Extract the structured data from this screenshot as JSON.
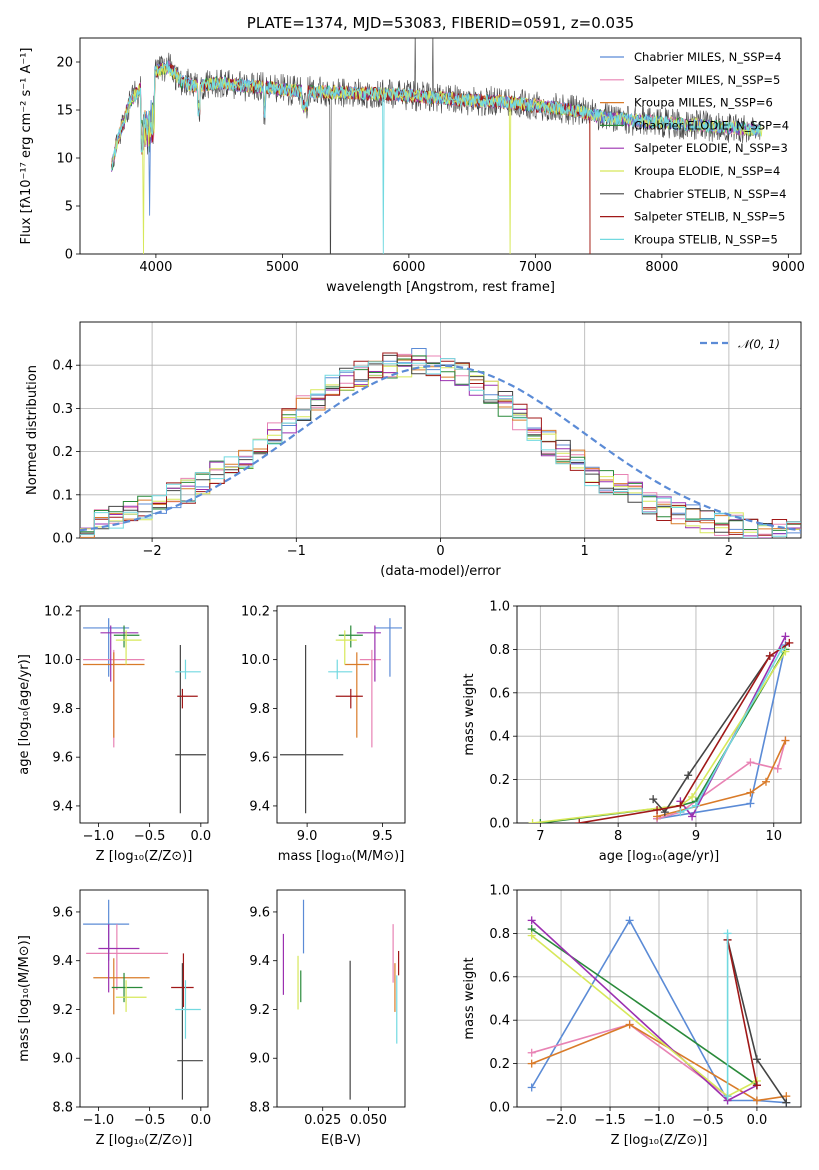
{
  "chart_data": [
    {
      "type": "line",
      "title": "PLATE=1374, MJD=53083, FIBERID=0591, z=0.035",
      "xlabel": "wavelength [Angstrom, rest frame]",
      "ylabel": "Flux [fλ10⁻¹⁷ erg cm⁻² s⁻¹ A⁻¹]",
      "xlim": [
        3400,
        9100
      ],
      "ylim": [
        0,
        22.5
      ],
      "xticks": [
        "4000",
        "5000",
        "6000",
        "7000",
        "8000",
        "9000"
      ],
      "yticks": [
        "0",
        "5",
        "10",
        "15",
        "20"
      ],
      "legend_position": "top-right",
      "series": [
        {
          "name": "Chabrier MILES, N_SSP=4",
          "color": "#5b8bd6"
        },
        {
          "name": "Salpeter MILES, N_SSP=5",
          "color": "#e883b4"
        },
        {
          "name": "Kroupa MILES, N_SSP=6",
          "color": "#d97b29"
        },
        {
          "name": "Chabrier ELODIE, N_SSP=4",
          "color": "#2a8a3a"
        },
        {
          "name": "Salpeter ELODIE, N_SSP=3",
          "color": "#9b30b0"
        },
        {
          "name": "Kroupa ELODIE, N_SSP=4",
          "color": "#d7e85a"
        },
        {
          "name": "Chabrier STELIB, N_SSP=4",
          "color": "#444444"
        },
        {
          "name": "Salpeter STELIB, N_SSP=5",
          "color": "#a01818"
        },
        {
          "name": "Kroupa STELIB, N_SSP=5",
          "color": "#72d9e0"
        }
      ],
      "spectrum_envelope": {
        "x": [
          3650,
          3700,
          3800,
          3900,
          4000,
          4100,
          4200,
          4300,
          4400,
          4500,
          4700,
          4900,
          5100,
          5300,
          5500,
          5700,
          5900,
          6100,
          6300,
          6500,
          6700,
          6900,
          7100,
          7300,
          7500,
          7700,
          7900,
          8100,
          8300,
          8500,
          8700,
          8800
        ],
        "y": [
          9,
          12,
          16,
          17.5,
          19,
          19.5,
          18,
          17.5,
          17.6,
          17.8,
          17.5,
          17.3,
          17,
          16.9,
          16.8,
          16.7,
          16.6,
          16.4,
          16.2,
          16,
          15.9,
          15.6,
          15.3,
          15,
          14.4,
          14,
          13.8,
          13.6,
          13.4,
          13.2,
          13,
          12.9
        ]
      },
      "annotations": [
        "deep absorption/cutoff spikes near 3950, 5380, 5800, 6800 and 7430 Å"
      ]
    },
    {
      "type": "bar",
      "xlabel": "(data-model)/error",
      "ylabel": "Normed distribution",
      "xlim": [
        -2.5,
        2.5
      ],
      "ylim": [
        0,
        0.5
      ],
      "xticks": [
        "−2",
        "−1",
        "0",
        "1",
        "2"
      ],
      "yticks": [
        "0.0",
        "0.1",
        "0.2",
        "0.3",
        "0.4"
      ],
      "grid": true,
      "legend_position": "top-right",
      "reference_curve": {
        "name": "𝒩(0, 1)",
        "color": "#5b8bd6",
        "style": "dashed"
      },
      "bin_width": 0.1,
      "histogram_values": [
        0.02,
        0.04,
        0.05,
        0.06,
        0.07,
        0.08,
        0.1,
        0.11,
        0.13,
        0.15,
        0.17,
        0.19,
        0.22,
        0.24,
        0.27,
        0.3,
        0.32,
        0.35,
        0.37,
        0.38,
        0.39,
        0.4,
        0.4,
        0.41,
        0.4,
        0.39,
        0.38,
        0.36,
        0.34,
        0.31,
        0.28,
        0.25,
        0.22,
        0.2,
        0.18,
        0.15,
        0.13,
        0.12,
        0.1,
        0.08,
        0.07,
        0.06,
        0.05,
        0.04,
        0.03,
        0.03,
        0.02,
        0.02,
        0.02,
        0.02
      ],
      "series_colors": [
        "#5b8bd6",
        "#e883b4",
        "#d97b29",
        "#2a8a3a",
        "#9b30b0",
        "#d7e85a",
        "#444444",
        "#a01818",
        "#72d9e0"
      ]
    },
    {
      "type": "scatter",
      "xlabel": "Z [log₁₀(Z/Z⊙)]",
      "ylabel": "age  [log₁₀(age/yr)]",
      "xlim": [
        -1.18,
        0.07
      ],
      "ylim": [
        9.33,
        10.22
      ],
      "xticks": [
        "−1.0",
        "−0.5",
        "0.0"
      ],
      "yticks": [
        "9.4",
        "9.6",
        "9.8",
        "10.0",
        "10.2"
      ],
      "points": [
        {
          "x": -0.9,
          "y": 10.13,
          "xerr": [
            0.25,
            0.2
          ],
          "yerr": [
            0.2,
            0.04
          ],
          "color": "#5b8bd6"
        },
        {
          "x": -0.85,
          "y": 10.0,
          "xerr": [
            0.3,
            0.3
          ],
          "yerr": [
            0.36,
            0.04
          ],
          "color": "#e883b4"
        },
        {
          "x": -0.85,
          "y": 9.98,
          "xerr": [
            0.3,
            0.3
          ],
          "yerr": [
            0.3,
            0.05
          ],
          "color": "#d97b29"
        },
        {
          "x": -0.75,
          "y": 10.1,
          "xerr": [
            0.1,
            0.15
          ],
          "yerr": [
            0.05,
            0.04
          ],
          "color": "#2a8a3a"
        },
        {
          "x": -0.88,
          "y": 10.11,
          "xerr": [
            0.1,
            0.27
          ],
          "yerr": [
            0.2,
            0.03
          ],
          "color": "#9b30b0"
        },
        {
          "x": -0.73,
          "y": 10.08,
          "xerr": [
            0.1,
            0.15
          ],
          "yerr": [
            0.1,
            0.04
          ],
          "color": "#d7e85a"
        },
        {
          "x": -0.2,
          "y": 9.61,
          "xerr": [
            0.05,
            0.25
          ],
          "yerr": [
            0.24,
            0.45
          ],
          "color": "#444444"
        },
        {
          "x": -0.18,
          "y": 9.85,
          "xerr": [
            0.05,
            0.15
          ],
          "yerr": [
            0.05,
            0.03
          ],
          "color": "#a01818"
        },
        {
          "x": -0.15,
          "y": 9.95,
          "xerr": [
            0.1,
            0.15
          ],
          "yerr": [
            0.03,
            0.05
          ],
          "color": "#72d9e0"
        }
      ]
    },
    {
      "type": "scatter",
      "xlabel": "mass [log₁₀(M/M⊙)]",
      "ylabel": "",
      "xlim": [
        8.8,
        9.65
      ],
      "ylim": [
        9.33,
        10.22
      ],
      "xticks": [
        "9.0",
        "9.5"
      ],
      "yticks": [
        "9.4",
        "9.6",
        "9.8",
        "10.0",
        "10.2"
      ],
      "points": [
        {
          "x": 9.55,
          "y": 10.13,
          "xerr": [
            0.1,
            0.08
          ],
          "yerr": [
            0.2,
            0.04
          ],
          "color": "#5b8bd6"
        },
        {
          "x": 9.43,
          "y": 10.0,
          "xerr": [
            0.08,
            0.06
          ],
          "yerr": [
            0.36,
            0.04
          ],
          "color": "#e883b4"
        },
        {
          "x": 9.33,
          "y": 9.98,
          "xerr": [
            0.08,
            0.08
          ],
          "yerr": [
            0.3,
            0.05
          ],
          "color": "#d97b29"
        },
        {
          "x": 9.29,
          "y": 10.1,
          "xerr": [
            0.08,
            0.08
          ],
          "yerr": [
            0.05,
            0.04
          ],
          "color": "#2a8a3a"
        },
        {
          "x": 9.45,
          "y": 10.11,
          "xerr": [
            0.12,
            0.04
          ],
          "yerr": [
            0.2,
            0.03
          ],
          "color": "#9b30b0"
        },
        {
          "x": 9.25,
          "y": 10.08,
          "xerr": [
            0.06,
            0.08
          ],
          "yerr": [
            0.1,
            0.04
          ],
          "color": "#d7e85a"
        },
        {
          "x": 8.99,
          "y": 9.61,
          "xerr": [
            0.17,
            0.25
          ],
          "yerr": [
            0.24,
            0.45
          ],
          "color": "#444444"
        },
        {
          "x": 9.29,
          "y": 9.85,
          "xerr": [
            0.1,
            0.08
          ],
          "yerr": [
            0.05,
            0.03
          ],
          "color": "#a01818"
        },
        {
          "x": 9.2,
          "y": 9.95,
          "xerr": [
            0.06,
            0.1
          ],
          "yerr": [
            0.03,
            0.05
          ],
          "color": "#72d9e0"
        }
      ]
    },
    {
      "type": "line",
      "xlabel": "age  [log₁₀(age/yr)]",
      "ylabel": "mass weight",
      "xlim": [
        6.7,
        10.35
      ],
      "ylim": [
        0,
        1.0
      ],
      "xticks": [
        "7",
        "8",
        "9",
        "10"
      ],
      "yticks": [
        "0.0",
        "0.2",
        "0.4",
        "0.6",
        "0.8",
        "1.0"
      ],
      "grid": true,
      "series": [
        {
          "color": "#5b8bd6",
          "x": [
            8.5,
            9.7,
            10.15
          ],
          "y": [
            0.02,
            0.09,
            0.82
          ]
        },
        {
          "color": "#e883b4",
          "x": [
            8.5,
            8.8,
            9.7,
            10.05,
            10.15
          ],
          "y": [
            0.02,
            0.05,
            0.28,
            0.25,
            0.38
          ]
        },
        {
          "color": "#d97b29",
          "x": [
            8.5,
            9.7,
            9.9,
            10.15
          ],
          "y": [
            0.03,
            0.14,
            0.19,
            0.38
          ]
        },
        {
          "color": "#2a8a3a",
          "x": [
            7.0,
            8.8,
            9.0,
            10.15
          ],
          "y": [
            0.0,
            0.08,
            0.1,
            0.8
          ]
        },
        {
          "color": "#9b30b0",
          "x": [
            8.8,
            8.95,
            10.15
          ],
          "y": [
            0.1,
            0.03,
            0.86
          ]
        },
        {
          "color": "#d7e85a",
          "x": [
            6.9,
            8.8,
            8.95,
            10.15
          ],
          "y": [
            0.0,
            0.08,
            0.12,
            0.79
          ]
        },
        {
          "color": "#444444",
          "x": [
            8.45,
            8.6,
            8.9,
            9.95
          ],
          "y": [
            0.11,
            0.05,
            0.22,
            0.77
          ]
        },
        {
          "color": "#a01818",
          "x": [
            7.5,
            8.5,
            8.8,
            9.95,
            10.2
          ],
          "y": [
            0.0,
            0.06,
            0.08,
            0.77,
            0.83
          ]
        },
        {
          "color": "#72d9e0",
          "x": [
            8.8,
            9.0,
            10.1
          ],
          "y": [
            0.05,
            0.08,
            0.8
          ]
        }
      ]
    },
    {
      "type": "scatter",
      "xlabel": "Z [log₁₀(Z/Z⊙)]",
      "ylabel": "mass [log₁₀(M/M⊙)]",
      "xlim": [
        -1.18,
        0.07
      ],
      "ylim": [
        8.8,
        9.69
      ],
      "xticks": [
        "−1.0",
        "−0.5",
        "0.0"
      ],
      "yticks": [
        "8.8",
        "9.0",
        "9.2",
        "9.4",
        "9.6"
      ],
      "points": [
        {
          "x": -0.9,
          "y": 9.55,
          "xerr": [
            0.25,
            0.2
          ],
          "yerr": [
            0.15,
            0.1
          ],
          "color": "#5b8bd6"
        },
        {
          "x": -0.82,
          "y": 9.43,
          "xerr": [
            0.3,
            0.5
          ],
          "yerr": [
            0.15,
            0.12
          ],
          "color": "#e883b4"
        },
        {
          "x": -0.85,
          "y": 9.33,
          "xerr": [
            0.2,
            0.35
          ],
          "yerr": [
            0.15,
            0.08
          ],
          "color": "#d97b29"
        },
        {
          "x": -0.75,
          "y": 9.29,
          "xerr": [
            0.12,
            0.18
          ],
          "yerr": [
            0.06,
            0.06
          ],
          "color": "#2a8a3a"
        },
        {
          "x": -0.9,
          "y": 9.45,
          "xerr": [
            0.1,
            0.3
          ],
          "yerr": [
            0.18,
            0.1
          ],
          "color": "#9b30b0"
        },
        {
          "x": -0.73,
          "y": 9.25,
          "xerr": [
            0.1,
            0.2
          ],
          "yerr": [
            0.06,
            0.07
          ],
          "color": "#d7e85a"
        },
        {
          "x": -0.18,
          "y": 8.99,
          "xerr": [
            0.05,
            0.2
          ],
          "yerr": [
            0.16,
            0.4
          ],
          "color": "#444444"
        },
        {
          "x": -0.17,
          "y": 9.29,
          "xerr": [
            0.12,
            0.1
          ],
          "yerr": [
            0.08,
            0.14
          ],
          "color": "#a01818"
        },
        {
          "x": -0.15,
          "y": 9.2,
          "xerr": [
            0.1,
            0.15
          ],
          "yerr": [
            0.12,
            0.12
          ],
          "color": "#72d9e0"
        }
      ]
    },
    {
      "type": "scatter",
      "xlabel": "E(B-V)",
      "ylabel": "",
      "xlim": [
        0.0,
        0.07
      ],
      "ylim": [
        8.8,
        9.69
      ],
      "xticks": [
        "0.025",
        "0.050"
      ],
      "yticks": [
        "8.8",
        "9.0",
        "9.2",
        "9.4",
        "9.6"
      ],
      "points": [
        {
          "x": 0.0145,
          "y": 9.55,
          "xerr": [
            0,
            0
          ],
          "yerr": [
            0.12,
            0.1
          ],
          "color": "#5b8bd6"
        },
        {
          "x": 0.0635,
          "y": 9.43,
          "xerr": [
            0,
            0
          ],
          "yerr": [
            0.12,
            0.12
          ],
          "color": "#e883b4"
        },
        {
          "x": 0.0645,
          "y": 9.33,
          "xerr": [
            0,
            0
          ],
          "yerr": [
            0.14,
            0.06
          ],
          "color": "#d97b29"
        },
        {
          "x": 0.013,
          "y": 9.29,
          "xerr": [
            0,
            0
          ],
          "yerr": [
            0.06,
            0.07
          ],
          "color": "#2a8a3a"
        },
        {
          "x": 0.0035,
          "y": 9.39,
          "xerr": [
            0,
            0
          ],
          "yerr": [
            0.13,
            0.12
          ],
          "color": "#9b30b0"
        },
        {
          "x": 0.0115,
          "y": 9.3,
          "xerr": [
            0,
            0
          ],
          "yerr": [
            0.1,
            0.12
          ],
          "color": "#d7e85a"
        },
        {
          "x": 0.04,
          "y": 9.1,
          "xerr": [
            0,
            0
          ],
          "yerr": [
            0.27,
            0.3
          ],
          "color": "#444444"
        },
        {
          "x": 0.0665,
          "y": 9.38,
          "xerr": [
            0,
            0
          ],
          "yerr": [
            0.04,
            0.06
          ],
          "color": "#a01818"
        },
        {
          "x": 0.0655,
          "y": 9.2,
          "xerr": [
            0,
            0
          ],
          "yerr": [
            0.14,
            0.14
          ],
          "color": "#72d9e0"
        }
      ]
    },
    {
      "type": "line",
      "xlabel": "Z [log₁₀(Z/Z⊙)]",
      "ylabel": "mass weight",
      "xlim": [
        -2.45,
        0.45
      ],
      "ylim": [
        0,
        1.0
      ],
      "xticks": [
        "−2.0",
        "−1.5",
        "−1.0",
        "−0.5",
        "0.0"
      ],
      "yticks": [
        "0.0",
        "0.2",
        "0.4",
        "0.6",
        "0.8",
        "1.0"
      ],
      "grid": true,
      "series": [
        {
          "color": "#5b8bd6",
          "x": [
            -2.3,
            -1.3,
            -0.3,
            0.0,
            0.3
          ],
          "y": [
            0.09,
            0.86,
            0.03,
            0.03,
            0.02
          ]
        },
        {
          "color": "#e883b4",
          "x": [
            -2.3,
            -1.3,
            -0.3
          ],
          "y": [
            0.25,
            0.38,
            0.05
          ]
        },
        {
          "color": "#d97b29",
          "x": [
            -2.3,
            -1.3,
            0.0,
            0.3
          ],
          "y": [
            0.2,
            0.38,
            0.03,
            0.05
          ]
        },
        {
          "color": "#2a8a3a",
          "x": [
            -2.3,
            0.0
          ],
          "y": [
            0.82,
            0.1
          ]
        },
        {
          "color": "#9b30b0",
          "x": [
            -2.3,
            -0.3,
            0.0
          ],
          "y": [
            0.86,
            0.03,
            0.1
          ]
        },
        {
          "color": "#d7e85a",
          "x": [
            -2.3,
            -0.3,
            0.0
          ],
          "y": [
            0.79,
            0.05,
            0.12
          ]
        },
        {
          "color": "#444444",
          "x": [
            -0.3,
            0.0,
            0.3
          ],
          "y": [
            0.77,
            0.22,
            0.02
          ]
        },
        {
          "color": "#a01818",
          "x": [
            -0.3,
            0.0
          ],
          "y": [
            0.77,
            0.1
          ]
        },
        {
          "color": "#72d9e0",
          "x": [
            -0.3,
            -0.3
          ],
          "y": [
            0.8,
            0.05
          ]
        }
      ]
    }
  ]
}
